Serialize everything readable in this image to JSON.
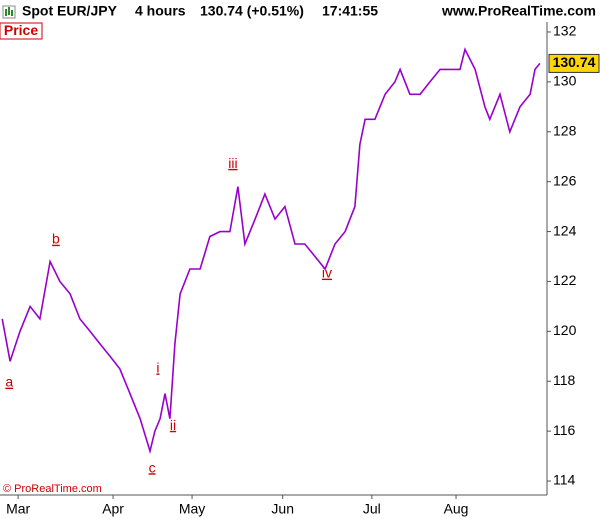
{
  "chart_data": {
    "type": "line",
    "title": "Spot EUR/JPY",
    "timeframe": "4 hours",
    "price_change": "130.74 (+0.51%)",
    "time": "17:41:55",
    "site": "www.ProRealTime.com",
    "panel_label": "Price",
    "copyright": "© ProRealTime.com",
    "x": [
      -5.3,
      -2.7,
      0.5,
      3.8,
      7,
      10.3,
      13.5,
      16.8,
      20,
      23.3,
      26.5,
      29.8,
      33,
      36.3,
      39.6,
      42.8,
      44.4,
      46.1,
      47.7,
      49.3,
      50.9,
      52.6,
      55.8,
      59.1,
      62.3,
      65.6,
      68.8,
      71.4,
      73.7,
      77,
      80.2,
      83.5,
      86.7,
      90,
      93.2,
      96.5,
      99.8,
      103,
      106.3,
      109.5,
      111.1,
      112.8,
      116,
      119.3,
      122.5,
      124.2,
      127.4,
      130.7,
      133.9,
      137.2,
      140.4,
      143.7,
      145.3,
      148.6,
      151.8,
      153.4,
      156.7,
      159.9,
      163.2,
      166.5,
      168.1,
      169.7
    ],
    "series": [
      {
        "name": "Spot EUR/JPY",
        "color": "#9900cc",
        "values": [
          120.5,
          118.8,
          120,
          121,
          120.5,
          122.8,
          122,
          121.5,
          120.5,
          120,
          119.5,
          119,
          118.5,
          117.5,
          116.5,
          115.2,
          116,
          116.5,
          117.5,
          116.5,
          119.5,
          121.5,
          122.5,
          122.5,
          123.8,
          124,
          124,
          125.8,
          123.5,
          124.5,
          125.5,
          124.5,
          125,
          123.5,
          123.5,
          123,
          122.5,
          123.5,
          124,
          125,
          127.5,
          128.5,
          128.5,
          129.5,
          130,
          130.5,
          129.5,
          129.5,
          130,
          130.5,
          130.5,
          130.5,
          131.3,
          130.5,
          129,
          128.5,
          129.5,
          128,
          129,
          129.5,
          130.5,
          130.74
        ]
      }
    ],
    "last_value": 130.74,
    "annotations": [
      {
        "text": "a",
        "x": -3,
        "y": 117.93
      },
      {
        "text": "b",
        "x": 12.2,
        "y": 123.66
      },
      {
        "text": "c",
        "x": 43.5,
        "y": 114.5
      },
      {
        "text": "i",
        "x": 45.4,
        "y": 118.5
      },
      {
        "text": "ii",
        "x": 50.3,
        "y": 116.2
      },
      {
        "text": "iii",
        "x": 69.8,
        "y": 126.7
      },
      {
        "text": "iv",
        "x": 100.4,
        "y": 122.3
      }
    ],
    "xlim": [
      -6,
      172
    ],
    "xticks": [
      {
        "value": -0.1,
        "label": "Mar"
      },
      {
        "value": 30.8,
        "label": "Apr"
      },
      {
        "value": 56.5,
        "label": "May"
      },
      {
        "value": 86,
        "label": "Jun"
      },
      {
        "value": 115,
        "label": "Jul"
      },
      {
        "value": 142.4,
        "label": "Aug"
      }
    ],
    "ylim": [
      113.44,
      132.4
    ],
    "yticks": [
      114,
      116,
      118,
      120,
      122,
      124,
      126,
      128,
      130,
      132
    ]
  }
}
